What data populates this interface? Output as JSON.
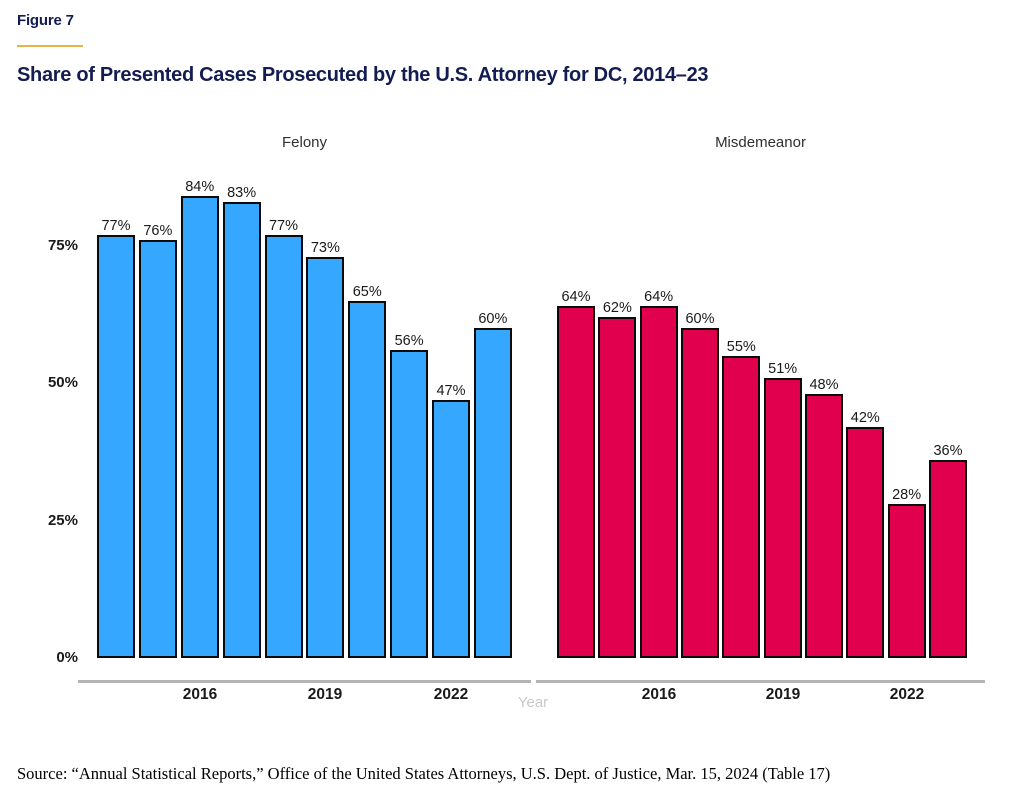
{
  "header": {
    "figure_label": "Figure 7",
    "title": "Share of Presented Cases Prosecuted by the U.S. Attorney for DC, 2014–23"
  },
  "chart_data": {
    "type": "bar",
    "layout": "two faceted panels sharing one y-axis, no gridlines, no legend",
    "categories": [
      2014,
      2015,
      2016,
      2017,
      2018,
      2019,
      2020,
      2021,
      2022,
      2023
    ],
    "series": [
      {
        "name": "Felony",
        "color": "#35a7ff",
        "values": [
          77,
          76,
          84,
          83,
          77,
          73,
          65,
          56,
          47,
          60
        ]
      },
      {
        "name": "Misdemeanor",
        "color": "#e0004e",
        "values": [
          64,
          62,
          64,
          60,
          55,
          51,
          48,
          42,
          28,
          36
        ]
      }
    ],
    "value_suffix": "%",
    "bar_labels_shown": true,
    "xlabel": "Year",
    "ylabel": "",
    "ylim": [
      0,
      100
    ],
    "y_ticks": [
      {
        "value": 75,
        "label": "75%"
      },
      {
        "value": 50,
        "label": "50%"
      },
      {
        "value": 25,
        "label": "25%"
      },
      {
        "value": 0,
        "label": "0%"
      }
    ],
    "x_tick_labels": [
      "2016",
      "2019",
      "2022"
    ],
    "x_tick_indices": [
      2,
      5,
      8
    ],
    "grid": false,
    "legend_position": "none"
  },
  "footer": {
    "source": "Source: “Annual Statistical Reports,” Office of the United States Attorneys, U.S. Dept. of Justice, Mar. 15, 2024 (Table 17)"
  },
  "colors": {
    "title_navy": "#141d52",
    "accent_gold": "#e9b34c",
    "felony_blue": "#35a7ff",
    "misdemeanor_red": "#e0004e",
    "bar_border": "#0a0a0a",
    "axis_line_gray": "#b4b4b8",
    "year_label_gray": "#c9c9c9"
  }
}
